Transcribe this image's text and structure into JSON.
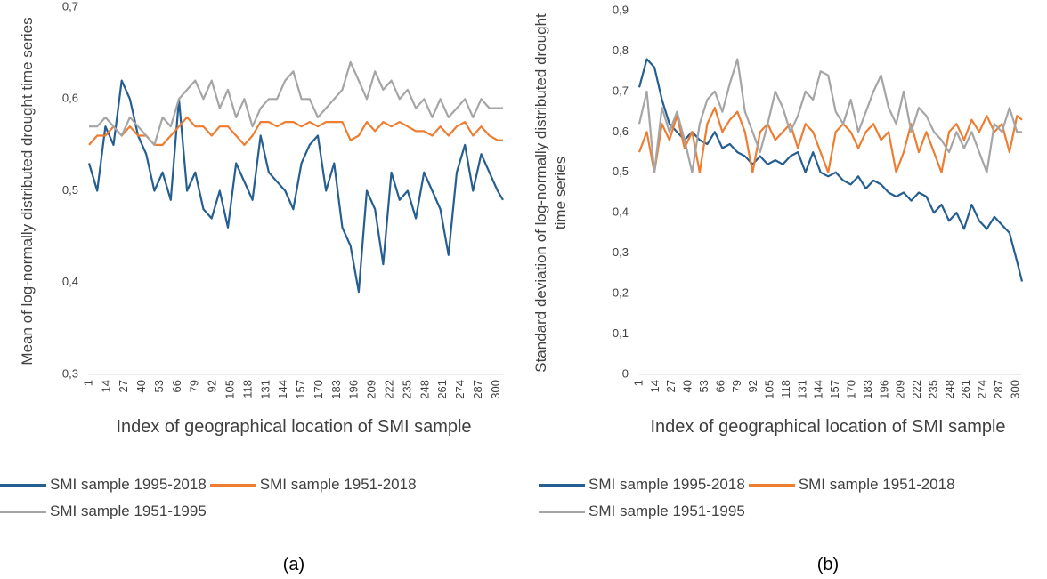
{
  "chart_data": [
    {
      "type": "line",
      "caption": "(a)",
      "y_label": "Mean of log-normally distributed drought time series",
      "x_label": "Index of geographical location of SMI sample",
      "x": [
        1,
        7,
        13,
        19,
        25,
        31,
        37,
        43,
        49,
        55,
        61,
        67,
        73,
        79,
        85,
        91,
        97,
        103,
        109,
        115,
        121,
        127,
        133,
        139,
        145,
        151,
        157,
        163,
        169,
        175,
        181,
        187,
        193,
        199,
        205,
        211,
        217,
        223,
        229,
        235,
        241,
        247,
        253,
        259,
        265,
        271,
        277,
        283,
        289,
        295,
        301,
        305
      ],
      "xlim": [
        1,
        305
      ],
      "xticks": [
        1,
        14,
        27,
        40,
        53,
        66,
        79,
        92,
        105,
        118,
        131,
        144,
        157,
        170,
        183,
        196,
        209,
        222,
        235,
        248,
        261,
        274,
        287,
        300
      ],
      "ylim": [
        0.3,
        0.7
      ],
      "yticks": [
        {
          "value": 0.3,
          "label": "0,3"
        },
        {
          "value": 0.4,
          "label": "0,4"
        },
        {
          "value": 0.5,
          "label": "0,5"
        },
        {
          "value": 0.6,
          "label": "0,6"
        },
        {
          "value": 0.7,
          "label": "0,7"
        }
      ],
      "series": [
        {
          "name": "SMI sample 1995-2018",
          "color": "#255e91",
          "values": [
            0.53,
            0.5,
            0.57,
            0.55,
            0.62,
            0.6,
            0.56,
            0.54,
            0.5,
            0.52,
            0.49,
            0.6,
            0.5,
            0.52,
            0.48,
            0.47,
            0.5,
            0.46,
            0.53,
            0.51,
            0.49,
            0.56,
            0.52,
            0.51,
            0.5,
            0.48,
            0.53,
            0.55,
            0.56,
            0.5,
            0.53,
            0.46,
            0.44,
            0.39,
            0.5,
            0.48,
            0.42,
            0.52,
            0.49,
            0.5,
            0.47,
            0.52,
            0.5,
            0.48,
            0.43,
            0.52,
            0.55,
            0.5,
            0.54,
            0.52,
            0.5,
            0.49
          ]
        },
        {
          "name": "SMI sample 1951-2018",
          "color": "#ed7d31",
          "values": [
            0.55,
            0.56,
            0.56,
            0.57,
            0.56,
            0.57,
            0.56,
            0.56,
            0.55,
            0.55,
            0.56,
            0.57,
            0.58,
            0.57,
            0.57,
            0.56,
            0.57,
            0.57,
            0.56,
            0.55,
            0.56,
            0.575,
            0.575,
            0.57,
            0.575,
            0.575,
            0.57,
            0.575,
            0.57,
            0.575,
            0.575,
            0.575,
            0.555,
            0.56,
            0.575,
            0.565,
            0.575,
            0.57,
            0.575,
            0.57,
            0.565,
            0.565,
            0.56,
            0.57,
            0.56,
            0.57,
            0.575,
            0.56,
            0.57,
            0.56,
            0.555,
            0.555
          ]
        },
        {
          "name": "SMI sample 1951-1995",
          "color": "#a5a5a5",
          "values": [
            0.57,
            0.57,
            0.58,
            0.57,
            0.56,
            0.58,
            0.57,
            0.56,
            0.55,
            0.58,
            0.57,
            0.6,
            0.61,
            0.62,
            0.6,
            0.62,
            0.59,
            0.61,
            0.58,
            0.6,
            0.57,
            0.59,
            0.6,
            0.6,
            0.62,
            0.63,
            0.6,
            0.6,
            0.58,
            0.59,
            0.6,
            0.61,
            0.64,
            0.62,
            0.6,
            0.63,
            0.61,
            0.62,
            0.6,
            0.61,
            0.59,
            0.6,
            0.58,
            0.6,
            0.58,
            0.59,
            0.6,
            0.58,
            0.6,
            0.59,
            0.59,
            0.59
          ]
        }
      ]
    },
    {
      "type": "line",
      "caption": "(b)",
      "y_label": "Standard deviation of log-normally distributed drought time series",
      "x_label": "Index of geographical location of SMI sample",
      "x": [
        1,
        7,
        13,
        19,
        25,
        31,
        37,
        43,
        49,
        55,
        61,
        67,
        73,
        79,
        85,
        91,
        97,
        103,
        109,
        115,
        121,
        127,
        133,
        139,
        145,
        151,
        157,
        163,
        169,
        175,
        181,
        187,
        193,
        199,
        205,
        211,
        217,
        223,
        229,
        235,
        241,
        247,
        253,
        259,
        265,
        271,
        277,
        283,
        289,
        295,
        301,
        305
      ],
      "xlim": [
        1,
        305
      ],
      "xticks": [
        1,
        14,
        27,
        40,
        53,
        66,
        79,
        92,
        105,
        118,
        131,
        144,
        157,
        170,
        183,
        196,
        209,
        222,
        235,
        248,
        261,
        274,
        287,
        300
      ],
      "ylim": [
        0,
        0.9
      ],
      "yticks": [
        0,
        {
          "value": 0.1,
          "label": "0,1"
        },
        {
          "value": 0.2,
          "label": "0,2"
        },
        {
          "value": 0.3,
          "label": "0,3"
        },
        {
          "value": 0.4,
          "label": "0,4"
        },
        {
          "value": 0.5,
          "label": "0,5"
        },
        {
          "value": 0.6,
          "label": "0,6"
        },
        {
          "value": 0.7,
          "label": "0,7"
        },
        {
          "value": 0.8,
          "label": "0,8"
        },
        {
          "value": 0.9,
          "label": "0,9"
        }
      ],
      "series": [
        {
          "name": "SMI sample 1995-2018",
          "color": "#255e91",
          "values": [
            0.71,
            0.78,
            0.76,
            0.68,
            0.62,
            0.6,
            0.58,
            0.6,
            0.58,
            0.57,
            0.6,
            0.56,
            0.57,
            0.55,
            0.54,
            0.52,
            0.54,
            0.52,
            0.53,
            0.52,
            0.54,
            0.55,
            0.5,
            0.55,
            0.5,
            0.49,
            0.5,
            0.48,
            0.47,
            0.49,
            0.46,
            0.48,
            0.47,
            0.45,
            0.44,
            0.45,
            0.43,
            0.45,
            0.44,
            0.4,
            0.42,
            0.38,
            0.4,
            0.36,
            0.42,
            0.38,
            0.36,
            0.39,
            0.37,
            0.35,
            0.28,
            0.23
          ]
        },
        {
          "name": "SMI sample 1951-2018",
          "color": "#ed7d31",
          "values": [
            0.55,
            0.6,
            0.5,
            0.62,
            0.58,
            0.64,
            0.56,
            0.6,
            0.5,
            0.62,
            0.66,
            0.6,
            0.63,
            0.65,
            0.6,
            0.5,
            0.6,
            0.62,
            0.58,
            0.6,
            0.62,
            0.56,
            0.62,
            0.6,
            0.55,
            0.5,
            0.6,
            0.62,
            0.6,
            0.56,
            0.6,
            0.62,
            0.58,
            0.6,
            0.5,
            0.55,
            0.62,
            0.55,
            0.6,
            0.55,
            0.5,
            0.6,
            0.62,
            0.58,
            0.63,
            0.6,
            0.64,
            0.6,
            0.62,
            0.55,
            0.64,
            0.63
          ]
        },
        {
          "name": "SMI sample 1951-1995",
          "color": "#a5a5a5",
          "values": [
            0.62,
            0.7,
            0.5,
            0.66,
            0.6,
            0.65,
            0.58,
            0.5,
            0.62,
            0.68,
            0.7,
            0.65,
            0.72,
            0.78,
            0.65,
            0.6,
            0.55,
            0.62,
            0.7,
            0.66,
            0.6,
            0.64,
            0.7,
            0.68,
            0.75,
            0.74,
            0.65,
            0.62,
            0.68,
            0.6,
            0.65,
            0.7,
            0.74,
            0.66,
            0.62,
            0.7,
            0.6,
            0.66,
            0.64,
            0.6,
            0.58,
            0.55,
            0.6,
            0.56,
            0.6,
            0.55,
            0.5,
            0.62,
            0.6,
            0.66,
            0.6,
            0.6
          ]
        }
      ]
    }
  ]
}
